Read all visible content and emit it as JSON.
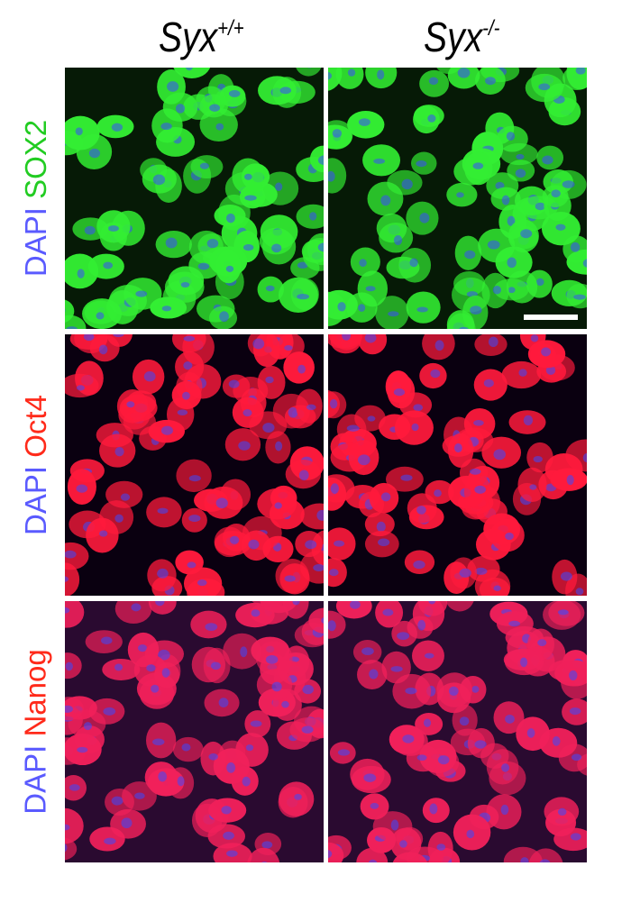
{
  "columns": [
    {
      "base": "Syx",
      "superscript": "+/+"
    },
    {
      "base": "Syx",
      "superscript": "-/-"
    }
  ],
  "rows": [
    {
      "stain1": "DAPI",
      "stain1_color": "#5a5aff",
      "stain2": "SOX2",
      "stain2_color": "#22cc22",
      "channel_color": "#33ee33"
    },
    {
      "stain1": "DAPI",
      "stain1_color": "#5a5aff",
      "stain2": "Oct4",
      "stain2_color": "#ff2a1a",
      "channel_color": "#ff1a3c"
    },
    {
      "stain1": "DAPI",
      "stain1_color": "#5a5aff",
      "stain2": "Nanog",
      "stain2_color": "#ff2a1a",
      "channel_color": "#f0205a"
    }
  ],
  "nucleus_color": "#3a4aff",
  "scale_bar_color": "#ffffff"
}
